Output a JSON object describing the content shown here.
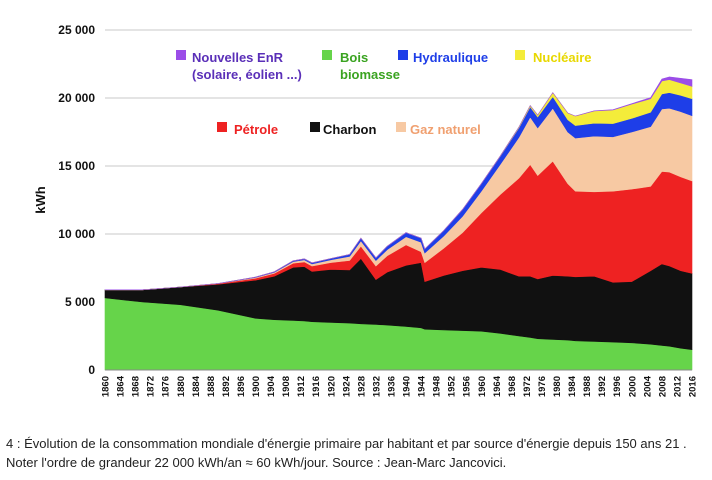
{
  "caption": "4 : Évolution de la consommation mondiale d'énergie primaire par habitant et par source d'énergie depuis 150 ans 21 . Noter l'ordre de grandeur 22 000 kWh/an ≈ 60 kWh/jour. Source : Jean-Marc Jancovici.",
  "chart_data": {
    "type": "area",
    "stacked": true,
    "ylabel": "kWh",
    "xlabel": "",
    "ylim": [
      0,
      25000
    ],
    "yticks": [
      0,
      5000,
      10000,
      15000,
      20000,
      25000
    ],
    "ytick_labels": [
      "0",
      "5 000",
      "10 000",
      "15 000",
      "20 000",
      "25 000"
    ],
    "xticks": [
      1860,
      1864,
      1868,
      1872,
      1876,
      1880,
      1884,
      1888,
      1892,
      1896,
      1900,
      1904,
      1908,
      1912,
      1916,
      1920,
      1924,
      1928,
      1932,
      1936,
      1940,
      1944,
      1948,
      1952,
      1956,
      1960,
      1964,
      1968,
      1972,
      1976,
      1980,
      1984,
      1988,
      1992,
      1996,
      2000,
      2004,
      2008,
      2012,
      2016
    ],
    "xlim": [
      1860,
      2016
    ],
    "grid": "horizontal",
    "x": [
      1860,
      1870,
      1880,
      1890,
      1900,
      1905,
      1910,
      1913,
      1915,
      1920,
      1925,
      1928,
      1932,
      1935,
      1940,
      1944,
      1945,
      1950,
      1955,
      1960,
      1965,
      1970,
      1973,
      1975,
      1979,
      1983,
      1985,
      1990,
      1995,
      2000,
      2005,
      2008,
      2010,
      2013,
      2016
    ],
    "series": [
      {
        "name": "Bois biomasse",
        "color": "#66d44a",
        "values": [
          5300,
          5000,
          4800,
          4400,
          3800,
          3700,
          3650,
          3600,
          3550,
          3500,
          3450,
          3400,
          3350,
          3300,
          3200,
          3100,
          3000,
          2950,
          2900,
          2850,
          2700,
          2500,
          2400,
          2300,
          2250,
          2200,
          2150,
          2100,
          2050,
          2000,
          1900,
          1800,
          1750,
          1600,
          1500
        ]
      },
      {
        "name": "Charbon",
        "color": "#111111",
        "values": [
          600,
          900,
          1300,
          1900,
          2800,
          3200,
          3900,
          4000,
          3700,
          3900,
          3900,
          4800,
          3300,
          3900,
          4500,
          4800,
          3500,
          4000,
          4400,
          4700,
          4700,
          4400,
          4500,
          4400,
          4700,
          4700,
          4700,
          4800,
          4400,
          4500,
          5400,
          6000,
          5900,
          5700,
          5600
        ]
      },
      {
        "name": "Pétrole",
        "color": "#ee2222",
        "values": [
          0,
          0,
          0,
          50,
          150,
          200,
          300,
          350,
          400,
          500,
          700,
          900,
          1000,
          1200,
          1500,
          800,
          1400,
          2000,
          2800,
          4000,
          5500,
          7200,
          8200,
          7600,
          8400,
          6800,
          6300,
          6200,
          6700,
          6800,
          6200,
          6800,
          6900,
          6900,
          6800
        ]
      },
      {
        "name": "Gaz naturel",
        "color": "#f7c9a3",
        "values": [
          0,
          0,
          0,
          0,
          50,
          80,
          120,
          150,
          150,
          200,
          300,
          400,
          400,
          450,
          600,
          700,
          700,
          900,
          1200,
          1600,
          2200,
          3000,
          3500,
          3500,
          3900,
          3800,
          3900,
          4100,
          4000,
          4200,
          4400,
          4600,
          4700,
          4800,
          4800
        ]
      },
      {
        "name": "Hydraulique",
        "color": "#1e3ee8",
        "values": [
          0,
          0,
          0,
          0,
          30,
          40,
          60,
          80,
          80,
          100,
          150,
          200,
          200,
          250,
          300,
          300,
          300,
          400,
          500,
          550,
          600,
          700,
          750,
          800,
          850,
          900,
          920,
          950,
          970,
          1000,
          1050,
          1100,
          1150,
          1200,
          1250
        ]
      },
      {
        "name": "Nucléaire",
        "color": "#f4ec3a",
        "values": [
          0,
          0,
          0,
          0,
          0,
          0,
          0,
          0,
          0,
          0,
          0,
          0,
          0,
          0,
          0,
          0,
          0,
          0,
          0,
          0,
          20,
          60,
          100,
          150,
          300,
          500,
          700,
          900,
          1000,
          1050,
          1000,
          950,
          950,
          900,
          900
        ]
      },
      {
        "name": "Nouvelles EnR (solaire, éolien ...)",
        "color": "#9b4de8",
        "values": [
          0,
          0,
          0,
          0,
          0,
          0,
          0,
          0,
          0,
          0,
          0,
          0,
          0,
          0,
          0,
          0,
          0,
          0,
          0,
          0,
          0,
          0,
          0,
          0,
          0,
          0,
          0,
          10,
          20,
          40,
          80,
          150,
          200,
          350,
          500
        ]
      }
    ],
    "legend": [
      {
        "label_lines": [
          "Nouvelles EnR",
          "(solaire, éolien ...)"
        ],
        "color": "#9b4de8",
        "text_color": "#5a2fb8"
      },
      {
        "label_lines": [
          "Bois",
          "biomasse"
        ],
        "color": "#66d44a",
        "text_color": "#3aa320"
      },
      {
        "label_lines": [
          "Hydraulique"
        ],
        "color": "#1e3ee8",
        "text_color": "#1e3ee8"
      },
      {
        "label_lines": [
          "Nucléaire"
        ],
        "color": "#f4ec3a",
        "text_color": "#e8d800"
      },
      {
        "label_lines": [
          "Pétrole"
        ],
        "color": "#ee2222",
        "text_color": "#ee2222"
      },
      {
        "label_lines": [
          "Charbon"
        ],
        "color": "#111111",
        "text_color": "#111111"
      },
      {
        "label_lines": [
          "Gaz naturel"
        ],
        "color": "#f7c9a3",
        "text_color": "#f0a070"
      }
    ]
  }
}
